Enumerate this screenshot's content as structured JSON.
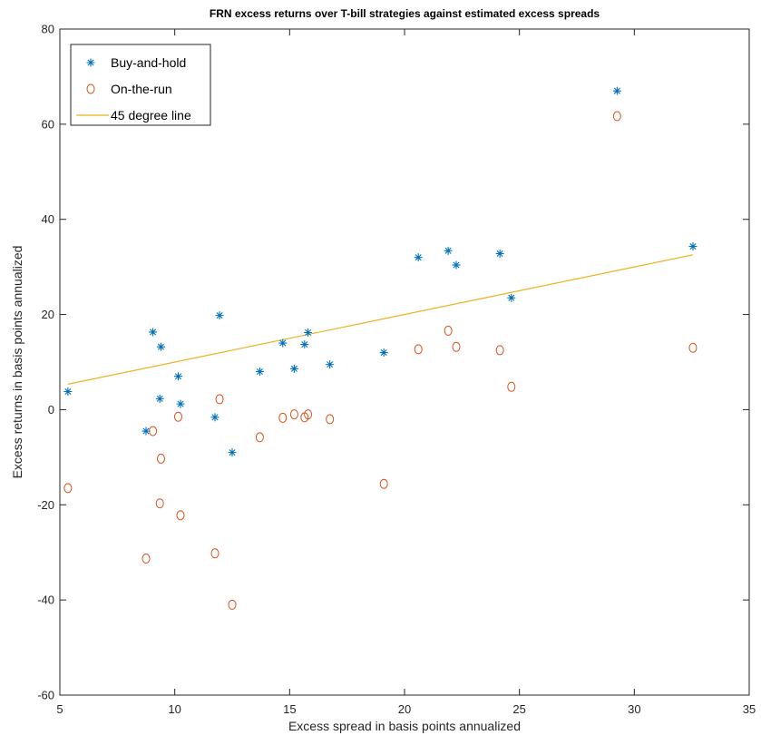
{
  "chart_data": {
    "type": "scatter",
    "title": "FRN excess returns over T-bill strategies against estimated excess spreads",
    "xlabel": "Excess spread in basis points annualized",
    "ylabel": "Excess returns in basis points annualized",
    "xlim": [
      5,
      35
    ],
    "ylim": [
      -60,
      80
    ],
    "xticks": [
      5,
      10,
      15,
      20,
      25,
      30,
      35
    ],
    "yticks": [
      -60,
      -40,
      -20,
      0,
      20,
      40,
      60,
      80
    ],
    "grid": false,
    "legend_position": "top-left",
    "colors": {
      "buy": "#0072BD",
      "otr": "#D95319",
      "line": "#EDB120",
      "axis": "#262626"
    },
    "series": [
      {
        "name": "Buy-and-hold",
        "marker": "asterisk",
        "x": [
          5.35,
          8.75,
          9.05,
          9.35,
          9.4,
          10.15,
          10.25,
          11.75,
          11.95,
          12.5,
          13.7,
          14.7,
          15.2,
          15.65,
          15.8,
          16.75,
          19.1,
          20.6,
          21.9,
          22.25,
          24.15,
          24.65,
          29.25,
          32.55
        ],
        "y": [
          3.8,
          -4.5,
          16.3,
          2.3,
          13.2,
          7.0,
          1.2,
          -1.6,
          19.8,
          -9.0,
          8.0,
          14.0,
          8.6,
          13.7,
          16.2,
          9.5,
          12.0,
          32.0,
          33.4,
          30.4,
          32.8,
          23.5,
          67.0,
          34.3
        ]
      },
      {
        "name": "On-the-run",
        "marker": "circle",
        "x": [
          5.35,
          8.75,
          9.05,
          9.35,
          9.4,
          10.15,
          10.25,
          11.75,
          11.95,
          12.5,
          13.7,
          14.7,
          15.2,
          15.65,
          15.8,
          16.75,
          19.1,
          20.6,
          21.9,
          22.25,
          24.15,
          24.65,
          29.25,
          32.55
        ],
        "y": [
          -16.5,
          -31.3,
          -4.5,
          -19.7,
          -10.3,
          -1.5,
          -22.2,
          -30.2,
          2.2,
          -41.0,
          -5.8,
          -1.7,
          -1.0,
          -1.6,
          -1.0,
          -2.0,
          -15.6,
          12.7,
          16.6,
          13.2,
          12.5,
          4.8,
          61.7,
          13.0
        ]
      },
      {
        "name": "45 degree line",
        "marker": "line",
        "x": [
          5.35,
          32.55
        ],
        "y": [
          5.35,
          32.55
        ]
      }
    ]
  }
}
